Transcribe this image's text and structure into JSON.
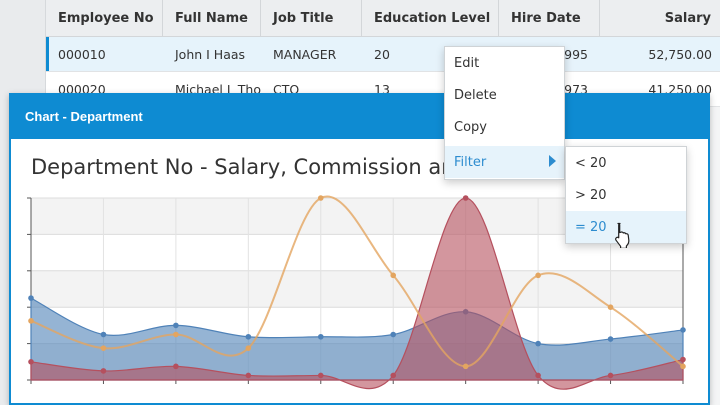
{
  "grid": {
    "columns": [
      {
        "label": "Employee No",
        "sort_icon": "↑"
      },
      {
        "label": "Full Name"
      },
      {
        "label": "Job Title"
      },
      {
        "label": "Education Level"
      },
      {
        "label": "Hire Date"
      },
      {
        "label": "Salary"
      }
    ],
    "rows": [
      {
        "cells": [
          "000010",
          "John I Haas",
          "MANAGER",
          "20",
          "1995",
          "52,750.00"
        ],
        "selected": true
      },
      {
        "cells": [
          "000020",
          "Michael L Tho",
          "CTO",
          "13",
          "1973",
          "41,250.00"
        ],
        "selected": false
      }
    ]
  },
  "chart_window": {
    "title": "Chart - Department",
    "heading": "Department No - Salary, Commission and"
  },
  "context_menu": {
    "items": [
      "Edit",
      "Delete",
      "Copy",
      "Filter"
    ]
  },
  "filter_submenu": {
    "items": [
      "< 20",
      "> 20",
      "= 20"
    ]
  },
  "chart_data": {
    "type": "area",
    "title": "Department No - Salary, Commission and",
    "ylim": [
      0,
      4
    ],
    "grid": true,
    "series": [
      {
        "values": [
          1.8,
          1.0,
          1.2,
          0.95,
          0.95,
          1.0,
          1.5,
          0.8,
          0.9,
          1.1
        ],
        "color": "#4f82b8"
      },
      {
        "values": [
          0.4,
          0.2,
          0.3,
          0.1,
          0.1,
          0.1,
          4.0,
          0.1,
          0.1,
          0.45
        ],
        "color": "#b5505e"
      },
      {
        "values": [
          1.3,
          0.7,
          1.0,
          0.7,
          4.0,
          2.3,
          0.3,
          2.3,
          1.6,
          0.3
        ],
        "color": "#e3a560"
      }
    ]
  }
}
